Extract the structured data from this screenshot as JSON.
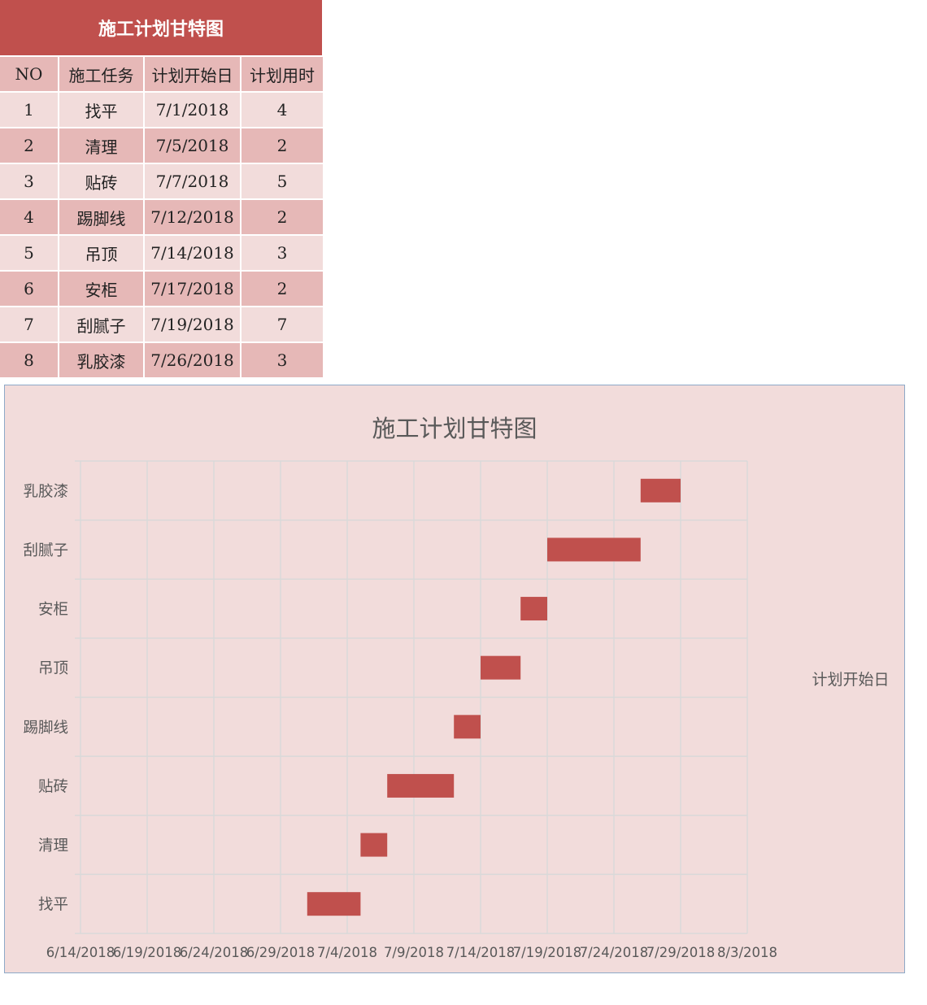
{
  "table": {
    "title": "施工计划甘特图",
    "headers": [
      "NO",
      "施工任务",
      "计划开始日",
      "计划用时"
    ],
    "rows": [
      {
        "no": "1",
        "task": "找平",
        "start": "7/1/2018",
        "duration": "4"
      },
      {
        "no": "2",
        "task": "清理",
        "start": "7/5/2018",
        "duration": "2"
      },
      {
        "no": "3",
        "task": "贴砖",
        "start": "7/7/2018",
        "duration": "5"
      },
      {
        "no": "4",
        "task": "踢脚线",
        "start": "7/12/2018",
        "duration": "2"
      },
      {
        "no": "5",
        "task": "吊顶",
        "start": "7/14/2018",
        "duration": "3"
      },
      {
        "no": "6",
        "task": "安柜",
        "start": "7/17/2018",
        "duration": "2"
      },
      {
        "no": "7",
        "task": "刮腻子",
        "start": "7/19/2018",
        "duration": "7"
      },
      {
        "no": "8",
        "task": "乳胶漆",
        "start": "7/26/2018",
        "duration": "3"
      }
    ]
  },
  "chart_data": {
    "type": "bar",
    "orientation": "horizontal-stacked-gantt",
    "title": "施工计划甘特图",
    "categories": [
      "找平",
      "清理",
      "贴砖",
      "踢脚线",
      "吊顶",
      "安柜",
      "刮腻子",
      "乳胶漆"
    ],
    "series": [
      {
        "name": "计划开始日",
        "values": [
          "2018-07-01",
          "2018-07-05",
          "2018-07-07",
          "2018-07-12",
          "2018-07-14",
          "2018-07-17",
          "2018-07-19",
          "2018-07-26"
        ],
        "visible": false
      },
      {
        "values": [
          4,
          2,
          5,
          2,
          3,
          2,
          7,
          3
        ]
      }
    ],
    "x_ticks": [
      "6/14/2018",
      "6/19/2018",
      "6/24/2018",
      "6/29/2018",
      "7/4/2018",
      "7/9/2018",
      "7/14/2018",
      "7/19/2018",
      "7/24/2018",
      "7/29/2018",
      "8/3/2018"
    ],
    "xlim": [
      "2018-06-14",
      "2018-08-03"
    ],
    "legend_label": "计划开始日",
    "legend_position": "right",
    "grid": true,
    "colors": {
      "bar": "#c0504d",
      "background": "#f2dcdb",
      "grid": "#d9d9d9",
      "header": "#c0504d"
    }
  }
}
